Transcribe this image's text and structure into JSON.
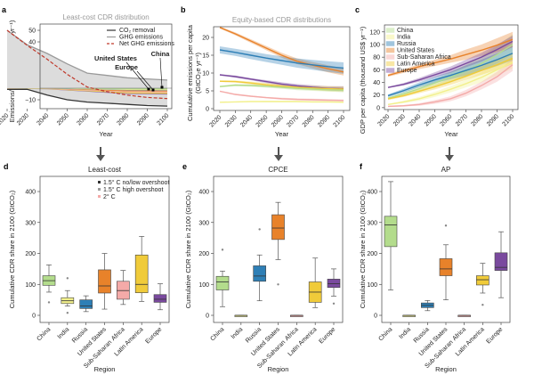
{
  "colors": {
    "China": "#b3dc8c",
    "India": "#f2f08c",
    "Russia": "#2e7fb6",
    "United States": "#e8822a",
    "Sub-Saharan Africa": "#f4aaa8",
    "Latin America": "#f0cb3a",
    "Europe": "#7a4a9e"
  },
  "regions": [
    "China",
    "India",
    "Russia",
    "United States",
    "Sub-Saharan Africa",
    "Latin America",
    "Europe"
  ],
  "region_labels": [
    [
      "China"
    ],
    [
      "India"
    ],
    [
      "Russia"
    ],
    [
      "United States"
    ],
    [
      "Sub-Saharan",
      "Africa"
    ],
    [
      "Latin America"
    ],
    [
      "Europe"
    ]
  ],
  "chart_data": [
    {
      "panel": "a",
      "type": "area",
      "title": "Least-cost CDR distribution",
      "xlabel": "Year",
      "ylabel": "Emissions/removals (GtCO₂e yr⁻¹)",
      "x": [
        2020,
        2030,
        2040,
        2050,
        2060,
        2070,
        2080,
        2090,
        2100
      ],
      "xlim": [
        2020,
        2100
      ],
      "ylim": [
        -17.7,
        55.4
      ],
      "yticks": [
        -10,
        0,
        10,
        20,
        30,
        40,
        50
      ],
      "series": [
        {
          "name": "CO₂ removal",
          "color": "#333333",
          "values": [
            -1,
            -1,
            -6,
            -10,
            -12,
            -13,
            -14,
            -15,
            -15.5
          ]
        },
        {
          "name": "GHG emissions",
          "color": "#9a9a9a",
          "values": [
            50,
            37.5,
            30,
            21,
            13,
            11,
            9,
            8,
            7
          ]
        },
        {
          "name": "Net GHG emissions",
          "color": "#c0392b",
          "dashed": true,
          "values": [
            50,
            37,
            25,
            12,
            1,
            -3,
            -6,
            -8,
            -9
          ]
        }
      ],
      "regional_stack_total": [
        -0.5,
        -0.7,
        -1,
        -2,
        -3,
        -4,
        -5,
        -5.3,
        -5.5
      ],
      "annotations": [
        "United States",
        "Europe",
        "China"
      ],
      "legend": "top-right"
    },
    {
      "panel": "b",
      "type": "line",
      "title": "Equity-based CDR distributions",
      "xlabel": "Year",
      "ylabel": [
        "Cumulative emissions per capita",
        "(GtCO₂e yr⁻¹)"
      ],
      "x": [
        2020,
        2030,
        2040,
        2050,
        2060,
        2070,
        2080,
        2090,
        2100
      ],
      "xlim": [
        2020,
        2100
      ],
      "ylim": [
        -0.5,
        23
      ],
      "yticks": [
        0,
        5,
        10,
        15,
        20
      ],
      "series": [
        {
          "name": "United States",
          "values": [
            22.8,
            21,
            19,
            17,
            15,
            13.3,
            12.2,
            11.2,
            10.3
          ],
          "band": [
            0.3,
            0.4,
            0.5,
            0.6,
            0.7,
            0.8,
            0.9,
            1,
            1
          ]
        },
        {
          "name": "Russia",
          "values": [
            16.5,
            15.8,
            15,
            14.2,
            13.5,
            12.8,
            12.3,
            11.8,
            11.4
          ],
          "band": [
            1,
            1,
            1.1,
            1.1,
            1.2,
            1.3,
            1.4,
            1.5,
            1.6
          ]
        },
        {
          "name": "Europe",
          "values": [
            9.5,
            9,
            8.3,
            7.6,
            6.9,
            6.4,
            6,
            5.7,
            5.6
          ],
          "band": [
            0.2,
            0.3,
            0.3,
            0.4,
            0.5,
            0.5,
            0.6,
            0.6,
            0.7
          ]
        },
        {
          "name": "Latin America",
          "values": [
            7.7,
            7.6,
            7.2,
            6.7,
            6.3,
            6,
            5.8,
            5.6,
            5.5
          ],
          "band": [
            0.2,
            0.3,
            0.4,
            0.5,
            0.5,
            0.6,
            0.6,
            0.7,
            0.7
          ]
        },
        {
          "name": "China",
          "values": [
            6.2,
            6.6,
            6.5,
            6.3,
            6,
            5.7,
            5.5,
            5.3,
            5.2
          ],
          "band": [
            0.2,
            0.3,
            0.3,
            0.4,
            0.4,
            0.5,
            0.5,
            0.5,
            0.6
          ]
        },
        {
          "name": "Sub-Saharan Africa",
          "values": [
            4.9,
            4,
            3.5,
            3.1,
            2.8,
            2.6,
            2.5,
            2.4,
            2.3
          ],
          "band": [
            0.1,
            0.2,
            0.2,
            0.2,
            0.3,
            0.3,
            0.3,
            0.3,
            0.3
          ]
        },
        {
          "name": "India",
          "values": [
            1.8,
            1.9,
            2,
            2,
            2,
            2,
            1.9,
            1.9,
            1.8
          ],
          "band": [
            0.1,
            0.1,
            0.1,
            0.2,
            0.2,
            0.2,
            0.2,
            0.2,
            0.2
          ]
        }
      ]
    },
    {
      "panel": "c",
      "type": "line",
      "title": "",
      "xlabel": "Year",
      "ylabel": "GDP per capita (thousand US$ yr⁻¹)",
      "x": [
        2020,
        2030,
        2040,
        2050,
        2060,
        2070,
        2080,
        2090,
        2100
      ],
      "xlim": [
        2020,
        2100
      ],
      "ylim": [
        -3,
        131
      ],
      "yticks": [
        0,
        20,
        40,
        60,
        80,
        100,
        120
      ],
      "legend": "top-left",
      "series": [
        {
          "name": "China",
          "values": [
            15,
            22,
            30,
            39,
            48,
            58,
            70,
            84,
            100
          ],
          "band": [
            2,
            3,
            4,
            6,
            8,
            10,
            12,
            14,
            16
          ]
        },
        {
          "name": "India",
          "values": [
            5,
            9,
            14,
            21,
            29,
            38,
            48,
            60,
            72
          ],
          "band": [
            1,
            2,
            3,
            4,
            5,
            6,
            8,
            9,
            10
          ]
        },
        {
          "name": "Russia",
          "values": [
            19,
            27,
            36,
            44,
            51,
            59,
            67,
            76,
            86
          ],
          "band": [
            2,
            3,
            4,
            5,
            6,
            8,
            9,
            10,
            11
          ]
        },
        {
          "name": "United States",
          "values": [
            51,
            58,
            65,
            71,
            77,
            84,
            91,
            99,
            108
          ],
          "band": [
            2,
            3,
            4,
            5,
            6,
            8,
            9,
            11,
            12
          ]
        },
        {
          "name": "Sub-Saharan Africa",
          "values": [
            2,
            3,
            5,
            9,
            14,
            23,
            35,
            49,
            68
          ],
          "band": [
            1,
            1,
            2,
            3,
            4,
            5,
            6,
            8,
            10
          ]
        },
        {
          "name": "Latin America",
          "values": [
            14,
            19,
            26,
            33,
            41,
            50,
            59,
            68,
            78
          ],
          "band": [
            2,
            2,
            3,
            4,
            5,
            6,
            7,
            8,
            9
          ]
        },
        {
          "name": "Europe",
          "values": [
            32,
            37,
            44,
            52,
            60,
            70,
            80,
            92,
            105
          ],
          "band": [
            1,
            2,
            3,
            4,
            5,
            6,
            7,
            8,
            9
          ]
        }
      ]
    },
    {
      "panel": "d",
      "type": "box",
      "title": "Least-cost",
      "xlabel": "Region",
      "ylabel": "Cumulative CDR share in 2100 (GtCO₂)",
      "ylim": [
        -23,
        449
      ],
      "yticks": [
        0,
        100,
        200,
        300,
        400
      ],
      "legend": [
        "1.5° C no/low overshoot",
        "1.5° C high overshoot",
        "2° C"
      ],
      "boxes": [
        [
          75,
          97,
          112,
          128,
          163
        ],
        [
          30,
          38,
          47,
          57,
          80
        ],
        [
          12,
          22,
          30,
          50,
          63
        ],
        [
          20,
          72,
          95,
          147,
          200
        ],
        [
          35,
          52,
          80,
          110,
          145
        ],
        [
          45,
          73,
          100,
          195,
          255
        ],
        [
          18,
          42,
          52,
          67,
          102
        ]
      ],
      "outliers": [
        [
          42
        ],
        [
          120,
          8
        ],
        [],
        [],
        [],
        [],
        []
      ]
    },
    {
      "panel": "e",
      "type": "box",
      "title": "CPCE",
      "xlabel": "Region",
      "ylabel": "Cumulative CDR share in 2100 (GtCO₂)",
      "ylim": [
        -23,
        449
      ],
      "yticks": [
        0,
        100,
        200,
        300,
        400
      ],
      "boxes": [
        [
          28,
          82,
          108,
          126,
          143
        ],
        [
          0,
          0,
          0,
          0,
          0
        ],
        [
          47,
          110,
          127,
          160,
          195
        ],
        [
          180,
          245,
          282,
          325,
          365
        ],
        [
          0,
          0,
          0,
          0,
          0
        ],
        [
          25,
          42,
          75,
          108,
          185
        ],
        [
          62,
          90,
          102,
          117,
          150
        ]
      ],
      "outliers": [
        [
          212
        ],
        [],
        [
          278
        ],
        [
          100
        ],
        [],
        [],
        [
          38
        ]
      ]
    },
    {
      "panel": "f",
      "type": "box",
      "title": "AP",
      "xlabel": "Region",
      "ylabel": "Cumulative CDR share in 2100 (GtCO₂)",
      "ylim": [
        -23,
        449
      ],
      "yticks": [
        0,
        100,
        200,
        300,
        400
      ],
      "boxes": [
        [
          82,
          222,
          292,
          320,
          432
        ],
        [
          0,
          0,
          0,
          0,
          0
        ],
        [
          15,
          25,
          32,
          40,
          48
        ],
        [
          50,
          128,
          150,
          183,
          228
        ],
        [
          0,
          0,
          0,
          0,
          0
        ],
        [
          72,
          98,
          115,
          128,
          168
        ],
        [
          57,
          145,
          155,
          202,
          270
        ]
      ],
      "outliers": [
        [],
        [],
        [],
        [
          290
        ],
        [],
        [
          34
        ],
        []
      ]
    }
  ]
}
